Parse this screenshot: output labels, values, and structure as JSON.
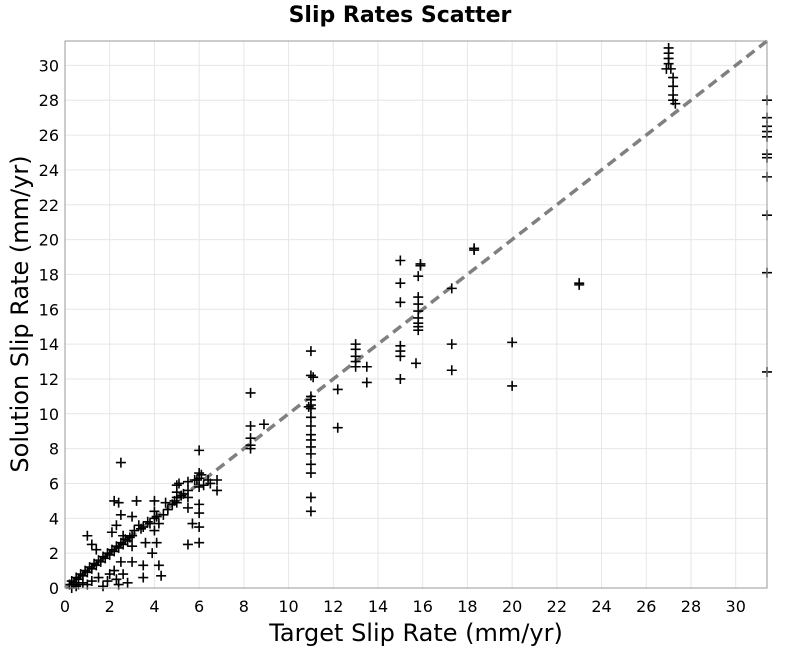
{
  "chart_data": {
    "type": "scatter",
    "title": "Slip Rates Scatter",
    "xlabel": "Target Slip Rate (mm/yr)",
    "ylabel": "Solution Slip Rate (mm/yr)",
    "xlim": [
      0,
      31.4
    ],
    "ylim": [
      0,
      31.4
    ],
    "x_ticks": [
      0,
      2,
      4,
      6,
      8,
      10,
      12,
      14,
      16,
      18,
      20,
      22,
      24,
      26,
      28,
      30
    ],
    "y_ticks": [
      0,
      2,
      4,
      6,
      8,
      10,
      12,
      14,
      16,
      18,
      20,
      22,
      24,
      26,
      28,
      30
    ],
    "grid": true,
    "marker": "+",
    "marker_color": "#000000",
    "reference_line": {
      "style": "dashed",
      "color": "#808080",
      "x": [
        0,
        31.4
      ],
      "y": [
        0,
        31.4
      ]
    },
    "points": [
      [
        0.2,
        0.2
      ],
      [
        0.3,
        0.4
      ],
      [
        0.4,
        0.3
      ],
      [
        0.5,
        0.6
      ],
      [
        0.6,
        0.5
      ],
      [
        0.5,
        0.1
      ],
      [
        0.7,
        0.8
      ],
      [
        0.8,
        0.7
      ],
      [
        0.9,
        1.0
      ],
      [
        1.0,
        0.9
      ],
      [
        0.3,
        0.0
      ],
      [
        0.6,
        0.2
      ],
      [
        0.8,
        0.3
      ],
      [
        1.1,
        1.2
      ],
      [
        1.2,
        1.1
      ],
      [
        1.3,
        1.4
      ],
      [
        1.4,
        1.3
      ],
      [
        1.5,
        1.6
      ],
      [
        1.6,
        1.5
      ],
      [
        1.7,
        1.8
      ],
      [
        1.8,
        1.7
      ],
      [
        1.9,
        2.0
      ],
      [
        2.0,
        1.9
      ],
      [
        1.0,
        3.0
      ],
      [
        1.2,
        2.5
      ],
      [
        1.4,
        2.2
      ],
      [
        1.0,
        0.2
      ],
      [
        1.2,
        0.4
      ],
      [
        1.5,
        0.6
      ],
      [
        1.7,
        0.1
      ],
      [
        1.9,
        0.4
      ],
      [
        2.0,
        0.8
      ],
      [
        2.1,
        2.2
      ],
      [
        2.2,
        2.1
      ],
      [
        2.3,
        2.4
      ],
      [
        2.4,
        2.3
      ],
      [
        2.5,
        2.6
      ],
      [
        2.6,
        2.5
      ],
      [
        2.2,
        5.0
      ],
      [
        2.4,
        4.9
      ],
      [
        2.5,
        4.2
      ],
      [
        2.3,
        3.6
      ],
      [
        2.1,
        3.2
      ],
      [
        2.6,
        3.0
      ],
      [
        2.2,
        1.0
      ],
      [
        2.3,
        0.5
      ],
      [
        2.4,
        0.2
      ],
      [
        2.5,
        1.5
      ],
      [
        2.6,
        0.8
      ],
      [
        2.8,
        0.3
      ],
      [
        2.5,
        7.2
      ],
      [
        2.7,
        2.8
      ],
      [
        2.8,
        2.7
      ],
      [
        2.9,
        2.9
      ],
      [
        3.0,
        3.0
      ],
      [
        3.0,
        2.4
      ],
      [
        3.0,
        4.1
      ],
      [
        3.1,
        3.3
      ],
      [
        3.2,
        5.0
      ],
      [
        3.0,
        1.5
      ],
      [
        3.3,
        3.6
      ],
      [
        3.4,
        3.4
      ],
      [
        3.5,
        3.5
      ],
      [
        3.5,
        1.3
      ],
      [
        3.5,
        0.6
      ],
      [
        3.6,
        2.6
      ],
      [
        3.7,
        3.8
      ],
      [
        3.8,
        3.7
      ],
      [
        3.9,
        2.0
      ],
      [
        4.0,
        4.0
      ],
      [
        4.0,
        4.4
      ],
      [
        4.0,
        5.0
      ],
      [
        4.1,
        4.1
      ],
      [
        4.2,
        3.7
      ],
      [
        4.0,
        3.3
      ],
      [
        4.1,
        2.6
      ],
      [
        4.2,
        1.3
      ],
      [
        4.3,
        0.7
      ],
      [
        4.4,
        4.2
      ],
      [
        4.5,
        4.9
      ],
      [
        4.6,
        4.5
      ],
      [
        4.8,
        4.8
      ],
      [
        4.9,
        5.0
      ],
      [
        5.0,
        5.2
      ],
      [
        5.0,
        5.5
      ],
      [
        5.0,
        4.9
      ],
      [
        5.0,
        5.9
      ],
      [
        5.1,
        6.0
      ],
      [
        5.2,
        5.3
      ],
      [
        5.3,
        5.4
      ],
      [
        5.5,
        5.6
      ],
      [
        5.5,
        5.2
      ],
      [
        5.5,
        4.6
      ],
      [
        5.5,
        2.5
      ],
      [
        5.5,
        6.1
      ],
      [
        5.7,
        3.7
      ],
      [
        5.8,
        6.2
      ],
      [
        5.9,
        6.2
      ],
      [
        6.0,
        6.3
      ],
      [
        6.0,
        6.6
      ],
      [
        6.0,
        5.8
      ],
      [
        6.0,
        4.8
      ],
      [
        6.0,
        4.3
      ],
      [
        6.0,
        3.5
      ],
      [
        6.0,
        2.6
      ],
      [
        6.0,
        7.9
      ],
      [
        6.1,
        6.5
      ],
      [
        6.2,
        5.9
      ],
      [
        6.4,
        6.2
      ],
      [
        6.5,
        6.0
      ],
      [
        6.8,
        5.6
      ],
      [
        6.8,
        6.2
      ],
      [
        8.3,
        11.2
      ],
      [
        8.3,
        9.3
      ],
      [
        8.3,
        8.6
      ],
      [
        8.3,
        8.2
      ],
      [
        8.3,
        8.0
      ],
      [
        8.9,
        9.4
      ],
      [
        11.0,
        13.6
      ],
      [
        11.0,
        12.2
      ],
      [
        11.1,
        12.1
      ],
      [
        11.0,
        11.0
      ],
      [
        11.0,
        10.8
      ],
      [
        11.0,
        10.5
      ],
      [
        11.0,
        10.3
      ],
      [
        10.9,
        10.4
      ],
      [
        11.0,
        9.8
      ],
      [
        11.0,
        9.3
      ],
      [
        11.0,
        8.8
      ],
      [
        11.0,
        8.5
      ],
      [
        11.0,
        8.1
      ],
      [
        11.0,
        7.7
      ],
      [
        11.0,
        7.1
      ],
      [
        11.0,
        6.6
      ],
      [
        11.0,
        5.2
      ],
      [
        11.0,
        4.4
      ],
      [
        12.2,
        11.4
      ],
      [
        12.2,
        9.2
      ],
      [
        13.0,
        14.0
      ],
      [
        13.0,
        13.7
      ],
      [
        13.0,
        13.3
      ],
      [
        13.0,
        13.0
      ],
      [
        13.0,
        12.7
      ],
      [
        13.5,
        12.7
      ],
      [
        13.5,
        11.8
      ],
      [
        15.0,
        18.8
      ],
      [
        15.0,
        17.5
      ],
      [
        15.0,
        16.4
      ],
      [
        15.0,
        13.9
      ],
      [
        15.0,
        13.6
      ],
      [
        15.0,
        13.3
      ],
      [
        15.0,
        12.0
      ],
      [
        15.8,
        17.9
      ],
      [
        15.9,
        18.6
      ],
      [
        15.9,
        18.5
      ],
      [
        15.8,
        16.7
      ],
      [
        15.8,
        16.3
      ],
      [
        15.8,
        15.9
      ],
      [
        15.8,
        15.5
      ],
      [
        15.8,
        15.2
      ],
      [
        15.8,
        15.0
      ],
      [
        15.8,
        14.8
      ],
      [
        15.7,
        12.9
      ],
      [
        17.3,
        17.2
      ],
      [
        17.3,
        14.0
      ],
      [
        17.3,
        12.5
      ],
      [
        18.3,
        19.4
      ],
      [
        18.3,
        19.5
      ],
      [
        20.0,
        14.1
      ],
      [
        20.0,
        11.6
      ],
      [
        23.0,
        17.5
      ],
      [
        23.0,
        17.4
      ],
      [
        27.0,
        31.0
      ],
      [
        27.0,
        30.7
      ],
      [
        27.0,
        30.4
      ],
      [
        27.0,
        30.1
      ],
      [
        26.9,
        29.8
      ],
      [
        27.1,
        29.8
      ],
      [
        27.2,
        29.3
      ],
      [
        27.2,
        28.8
      ],
      [
        27.2,
        28.3
      ],
      [
        27.2,
        28.0
      ],
      [
        27.3,
        27.8
      ],
      [
        31.4,
        28.0
      ],
      [
        31.4,
        27.0
      ],
      [
        31.4,
        26.5
      ],
      [
        31.4,
        26.2
      ],
      [
        31.4,
        25.9
      ],
      [
        31.4,
        24.9
      ],
      [
        31.4,
        24.7
      ],
      [
        31.4,
        23.6
      ],
      [
        31.4,
        21.4
      ],
      [
        31.4,
        18.1
      ],
      [
        31.4,
        12.4
      ]
    ]
  }
}
